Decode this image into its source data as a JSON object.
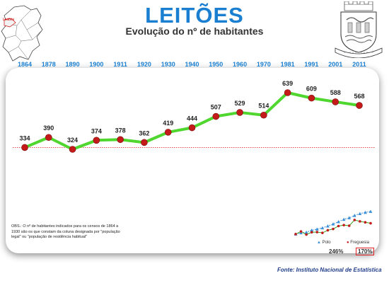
{
  "header": {
    "title": "LEITÕES",
    "subtitle": "Evolução do nº de habitantes",
    "map_label": "Leitões"
  },
  "colors": {
    "title": "#1a7fd0",
    "year_labels": "#1a7fd0",
    "line": "#4fd62f",
    "markers": "#c41a1a",
    "reference_line": "#e03030",
    "mini_polo": "#3a8fd6",
    "mini_freguesia": "#c41a1a"
  },
  "chart_data": {
    "type": "line",
    "title": "Evolução do nº de habitantes",
    "xlabel": "",
    "ylabel": "",
    "categories": [
      "1864",
      "1878",
      "1890",
      "1900",
      "1911",
      "1920",
      "1930",
      "1940",
      "1950",
      "1960",
      "1970",
      "1981",
      "1991",
      "2001",
      "2011"
    ],
    "series": [
      {
        "values": [
          334,
          390,
          324,
          374,
          378,
          362,
          419,
          444,
          507,
          529,
          514,
          639,
          609,
          588,
          568
        ]
      }
    ],
    "data_labels": [
      "334",
      "390",
      "324",
      "374",
      "378",
      "362",
      "419",
      "444",
      "507",
      "529",
      "514",
      "639",
      "609",
      "588",
      "568"
    ],
    "reference_line_value": 334,
    "grid": false,
    "legend": "none"
  },
  "inset": {
    "legend": [
      {
        "name": "Polo",
        "icon": "triangle-marker"
      },
      {
        "name": "Freguesia",
        "icon": "dot-marker"
      }
    ],
    "polo_pct": "246%",
    "freguesia_pct": "170%",
    "polo_values": [
      100,
      108,
      112,
      125,
      132,
      140,
      152,
      165,
      180,
      195,
      205,
      220,
      232,
      240,
      246
    ],
    "freguesia_values": [
      100,
      117,
      97,
      112,
      113,
      108,
      125,
      133,
      152,
      158,
      154,
      191,
      182,
      176,
      170
    ]
  },
  "footer": {
    "note": "OBS.: O nº de habitantes indicados para os censos de 1864 a 1930 são os que constam da coluna designada por \"população legal\" ou \"população de residência habitual\"",
    "source": "Fonte: Instituto Nacional de Estatística"
  }
}
